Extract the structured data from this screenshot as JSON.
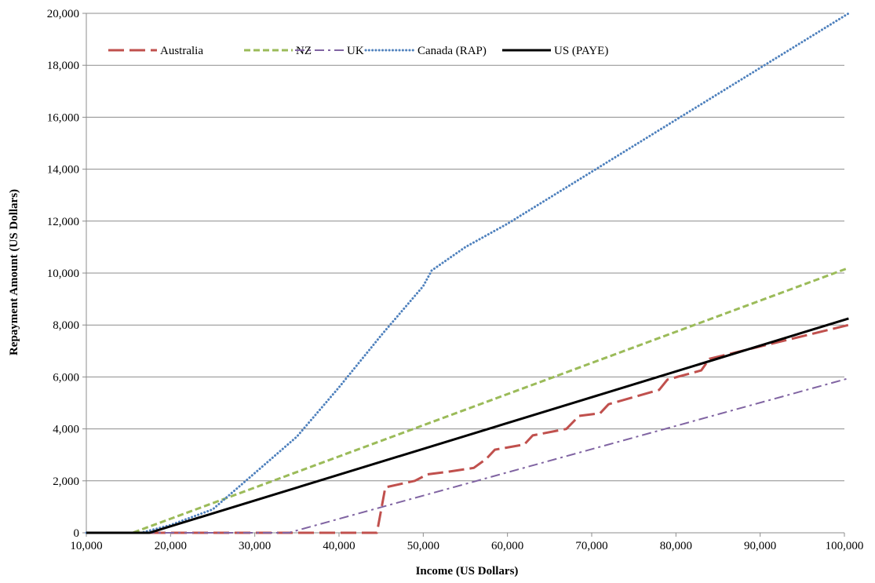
{
  "chart_data": {
    "type": "line",
    "title": "",
    "xlabel": "Income (US Dollars)",
    "ylabel": "Repayment Amount (US Dollars)",
    "xlim": [
      10000,
      100000
    ],
    "ylim": [
      0,
      20000
    ],
    "x_ticks": [
      "10,000",
      "20,000",
      "30,000",
      "40,000",
      "50,000",
      "60,000",
      "70,000",
      "80,000",
      "90,000",
      "100,000"
    ],
    "y_ticks": [
      "0",
      "2,000",
      "4,000",
      "6,000",
      "8,000",
      "10,000",
      "12,000",
      "14,000",
      "16,000",
      "18,000",
      "20,000"
    ],
    "grid": "horizontal",
    "legend_position": "top-left",
    "series": [
      {
        "name": "Australia",
        "color": "#C0504D",
        "style": "long-dash",
        "points": [
          [
            10000,
            0
          ],
          [
            44500,
            0
          ],
          [
            45500,
            1750
          ],
          [
            49000,
            2000
          ],
          [
            50500,
            2250
          ],
          [
            53000,
            2350
          ],
          [
            56000,
            2500
          ],
          [
            57500,
            2850
          ],
          [
            58500,
            3200
          ],
          [
            62000,
            3400
          ],
          [
            63000,
            3750
          ],
          [
            67000,
            4000
          ],
          [
            68500,
            4500
          ],
          [
            71000,
            4600
          ],
          [
            72000,
            4950
          ],
          [
            78000,
            5500
          ],
          [
            79000,
            5900
          ],
          [
            83000,
            6250
          ],
          [
            84000,
            6700
          ],
          [
            100500,
            8000
          ]
        ]
      },
      {
        "name": "NZ",
        "color": "#9BBB59",
        "style": "dash",
        "points": [
          [
            10000,
            0
          ],
          [
            15500,
            0
          ],
          [
            100500,
            10200
          ]
        ]
      },
      {
        "name": "UK",
        "color": "#8064A2",
        "style": "dash-dot",
        "points": [
          [
            10000,
            0
          ],
          [
            34000,
            0
          ],
          [
            100500,
            5950
          ]
        ]
      },
      {
        "name": "Canada (RAP)",
        "color": "#4F81BD",
        "style": "dot",
        "points": [
          [
            10000,
            0
          ],
          [
            16500,
            0
          ],
          [
            20000,
            300
          ],
          [
            25000,
            900
          ],
          [
            30000,
            2300
          ],
          [
            35000,
            3700
          ],
          [
            40000,
            5600
          ],
          [
            45000,
            7600
          ],
          [
            50000,
            9500
          ],
          [
            51000,
            10100
          ],
          [
            55000,
            11000
          ],
          [
            60000,
            11900
          ],
          [
            70000,
            13900
          ],
          [
            80000,
            15900
          ],
          [
            90000,
            17900
          ],
          [
            100500,
            20000
          ]
        ]
      },
      {
        "name": "US (PAYE)",
        "color": "#000000",
        "style": "solid",
        "points": [
          [
            10000,
            0
          ],
          [
            17500,
            0
          ],
          [
            100500,
            8250
          ]
        ]
      }
    ]
  }
}
